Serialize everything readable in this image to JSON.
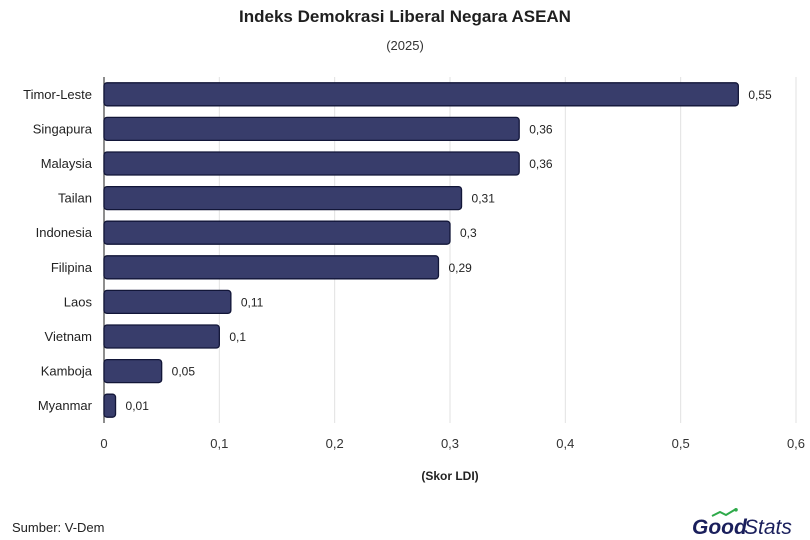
{
  "chart_data": {
    "type": "bar",
    "orientation": "horizontal",
    "title": "Indeks Demokrasi Liberal Negara ASEAN",
    "subtitle": "(2025)",
    "xlabel": "(Skor LDI)",
    "categories": [
      "Timor-Leste",
      "Singapura",
      "Malaysia",
      "Tailan",
      "Indonesia",
      "Filipina",
      "Laos",
      "Vietnam",
      "Kamboja",
      "Myanmar"
    ],
    "values": [
      0.55,
      0.36,
      0.36,
      0.31,
      0.3,
      0.29,
      0.11,
      0.1,
      0.05,
      0.01
    ],
    "data_labels": [
      "0,55",
      "0,36",
      "0,36",
      "0,31",
      "0,3",
      "0,29",
      "0,11",
      "0,1",
      "0,05",
      "0,01"
    ],
    "xlim": [
      0,
      0.6
    ],
    "xticks": [
      0,
      0.1,
      0.2,
      0.3,
      0.4,
      0.5,
      0.6
    ],
    "xtick_labels": [
      "0",
      "0,1",
      "0,2",
      "0,3",
      "0,4",
      "0,5",
      "0,6"
    ],
    "grid": true,
    "legend": "none",
    "bar_color": "#383d6b",
    "bar_edge_color": "#121638"
  },
  "footer": {
    "source": "Sumber: V-Dem",
    "brand_good": "Good",
    "brand_stats": "Stats",
    "brand_color": "#1a1f5c",
    "accent_color": "#2eaa4a"
  }
}
